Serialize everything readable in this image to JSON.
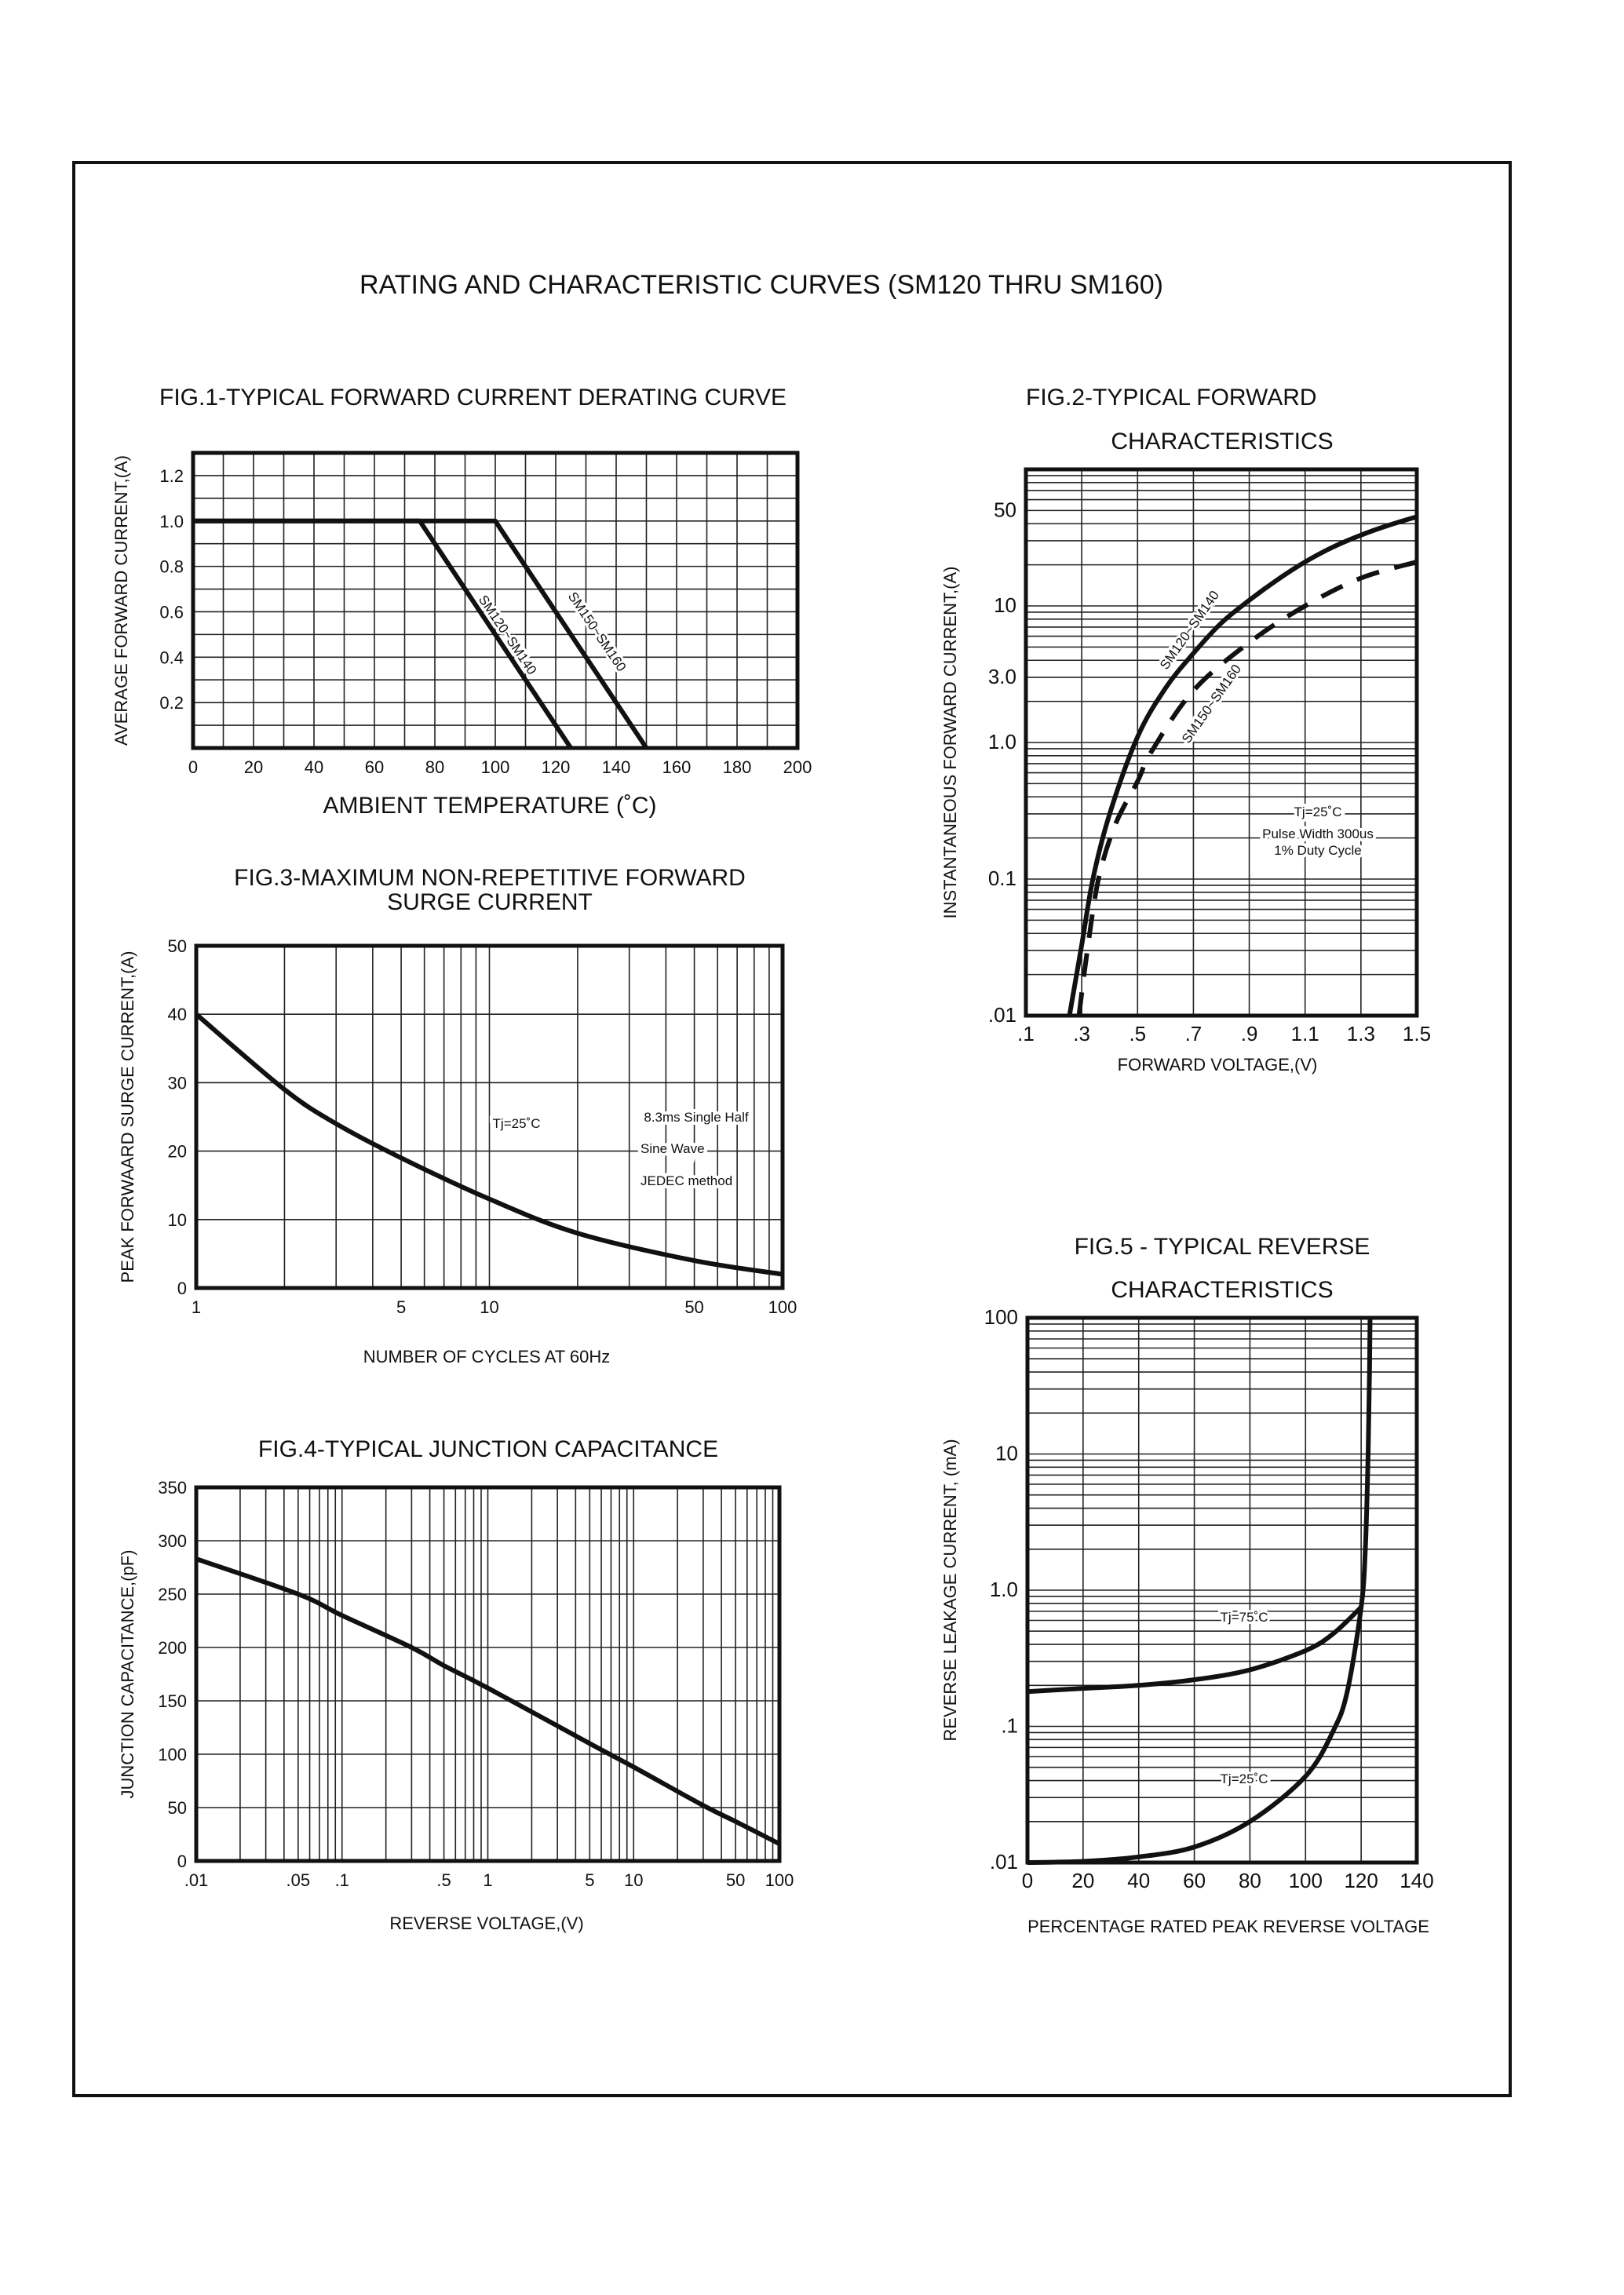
{
  "page_title": "RATING AND CHARACTERISTIC CURVES (SM120 THRU SM160)",
  "chart_data": [
    {
      "type": "line",
      "title_lines": [
        "FIG.1-TYPICAL FORWARD CURRENT DERATING CURVE"
      ],
      "xlabel": "AMBIENT TEMPERATURE (˚C)",
      "ylabel": "AVERAGE FORWARD CURRENT,(A)",
      "x_scale": "linear",
      "y_scale": "linear",
      "xlim": [
        0,
        200
      ],
      "ylim": [
        0,
        1.3
      ],
      "grid": true,
      "x_grid_step": 10,
      "y_grid_step": 0.1,
      "xticks": {
        "values": [
          0,
          20,
          40,
          60,
          80,
          100,
          120,
          140,
          160,
          180,
          200
        ],
        "labels": [
          "0",
          "20",
          "40",
          "60",
          "80",
          "100",
          "120",
          "140",
          "160",
          "180",
          "200"
        ]
      },
      "yticks": {
        "values": [
          0.2,
          0.4,
          0.6,
          0.8,
          1.0,
          1.2
        ],
        "labels": [
          "0.2",
          "0.4",
          "0.6",
          "0.8",
          "1.0",
          "1.2"
        ]
      },
      "series": [
        {
          "name": "SM120~SM140",
          "style": "solid",
          "x": [
            0,
            75,
            125
          ],
          "y": [
            1.0,
            1.0,
            0
          ]
        },
        {
          "name": "SM150~SM160",
          "style": "solid",
          "x": [
            0,
            100,
            150
          ],
          "y": [
            1.0,
            1.0,
            0
          ]
        }
      ],
      "annotations": []
    },
    {
      "type": "line",
      "title_lines": [
        "FIG.2-TYPICAL FORWARD",
        "CHARACTERISTICS"
      ],
      "xlabel": "FORWARD VOLTAGE,(V)",
      "ylabel": "INSTANTANEOUS FORWARD CURRENT,(A)",
      "x_scale": "linear",
      "y_scale": "log",
      "xlim": [
        0.1,
        1.5
      ],
      "ylim": [
        0.01,
        100
      ],
      "grid": true,
      "x_grid_step": 0.2,
      "xticks": {
        "values": [
          0.1,
          0.3,
          0.5,
          0.7,
          0.9,
          1.1,
          1.3,
          1.5
        ],
        "labels": [
          ".1",
          ".3",
          ".5",
          ".7",
          ".9",
          "1.1",
          "1.3",
          "1.5"
        ]
      },
      "yticks": {
        "values": [
          0.01,
          0.1,
          1,
          3,
          10,
          50
        ],
        "labels": [
          ".01",
          "0.1",
          "1.0",
          "3.0",
          "10",
          "50"
        ]
      },
      "series": [
        {
          "name": "SM120~SM140",
          "style": "solid",
          "x": [
            0.256,
            0.3,
            0.34,
            0.4,
            0.5,
            0.6,
            0.7,
            0.8,
            0.9,
            1.0,
            1.1,
            1.2,
            1.3,
            1.4,
            1.5
          ],
          "y": [
            0.01,
            0.033,
            0.1,
            0.3,
            1.1,
            2.5,
            4.5,
            7.5,
            11,
            15.5,
            21,
            27,
            33,
            39,
            45
          ]
        },
        {
          "name": "SM150~SM160",
          "style": "dashed",
          "x": [
            0.29,
            0.32,
            0.36,
            0.42,
            0.5,
            0.55,
            0.7,
            0.9,
            1.1,
            1.3,
            1.5
          ],
          "y": [
            0.01,
            0.03,
            0.1,
            0.25,
            0.52,
            0.86,
            2.4,
            5.4,
            10,
            16,
            21
          ]
        }
      ],
      "annotations": [
        "Tj=25˚C",
        "Pulse Width 300us",
        "1% Duty Cycle"
      ]
    },
    {
      "type": "line",
      "title_lines": [
        "FIG.3-MAXIMUM NON-REPETITIVE FORWARD",
        "SURGE CURRENT"
      ],
      "xlabel": "NUMBER OF CYCLES AT 60Hz",
      "ylabel": "PEAK FORWAARD SURGE CURRENT,(A)",
      "x_scale": "log",
      "y_scale": "linear",
      "xlim": [
        1,
        100
      ],
      "ylim": [
        0,
        50
      ],
      "grid": true,
      "y_grid_step": 10,
      "xticks": {
        "values": [
          1,
          5,
          10,
          50,
          100
        ],
        "labels": [
          "1",
          "5",
          "10",
          "50",
          "100"
        ]
      },
      "yticks": {
        "values": [
          0,
          10,
          20,
          30,
          40,
          50
        ],
        "labels": [
          "0",
          "10",
          "20",
          "30",
          "40",
          "50"
        ]
      },
      "series": [
        {
          "style": "solid",
          "x": [
            1,
            2,
            3,
            5,
            10,
            20,
            50,
            100
          ],
          "y": [
            40,
            29,
            24,
            19,
            13,
            8,
            4,
            2
          ]
        }
      ],
      "annotations": [
        "Tj=25˚C",
        "8.3ms Single Half",
        "Sine Wave",
        "JEDEC method"
      ]
    },
    {
      "type": "line",
      "title_lines": [
        "FIG.4-TYPICAL JUNCTION CAPACITANCE"
      ],
      "xlabel": "REVERSE VOLTAGE,(V)",
      "ylabel": "JUNCTION CAPACITANCE,(pF)",
      "x_scale": "log",
      "y_scale": "linear",
      "xlim": [
        0.01,
        100
      ],
      "ylim": [
        0,
        350
      ],
      "grid": true,
      "y_grid_step": 50,
      "xticks": {
        "values": [
          0.01,
          0.05,
          0.1,
          0.5,
          1,
          5,
          10,
          50,
          100
        ],
        "labels": [
          ".01",
          ".05",
          ".1",
          ".5",
          "1",
          "5",
          "10",
          "50",
          "100"
        ]
      },
      "yticks": {
        "values": [
          0,
          50,
          100,
          150,
          200,
          250,
          300,
          350
        ],
        "labels": [
          "0",
          "50",
          "100",
          "150",
          "200",
          "250",
          "300",
          "350"
        ]
      },
      "series": [
        {
          "style": "solid",
          "x": [
            0.01,
            0.05,
            0.1,
            0.3,
            0.5,
            1,
            5,
            10,
            30,
            50,
            100
          ],
          "y": [
            283,
            250,
            230,
            200,
            183,
            162,
            110,
            88,
            52,
            37,
            16
          ]
        }
      ],
      "annotations": []
    },
    {
      "type": "line",
      "title_lines": [
        "FIG.5 - TYPICAL REVERSE",
        "CHARACTERISTICS"
      ],
      "xlabel": "PERCENTAGE RATED PEAK REVERSE VOLTAGE",
      "ylabel": "REVERSE LEAKAGE CURRENT, (mA)",
      "x_scale": "linear",
      "y_scale": "log",
      "xlim": [
        0,
        140
      ],
      "ylim": [
        0.01,
        100
      ],
      "grid": true,
      "x_grid_step": 20,
      "xticks": {
        "values": [
          0,
          20,
          40,
          60,
          80,
          100,
          120,
          140
        ],
        "labels": [
          "0",
          "20",
          "40",
          "60",
          "80",
          "100",
          "120",
          "140"
        ]
      },
      "yticks": {
        "values": [
          0.01,
          0.1,
          1,
          10,
          100
        ],
        "labels": [
          ".01",
          ".1",
          "1.0",
          "10",
          "100"
        ]
      },
      "series": [
        {
          "name": "Tj=75˚C",
          "style": "solid",
          "x": [
            0,
            20,
            40,
            60,
            80,
            100,
            110,
            120
          ],
          "y": [
            0.18,
            0.19,
            0.2,
            0.22,
            0.26,
            0.36,
            0.48,
            0.75
          ]
        },
        {
          "name": "Tj=25˚C",
          "style": "solid",
          "x": [
            0,
            20,
            40,
            60,
            80,
            100,
            110,
            115,
            120,
            121.5,
            122.5,
            123,
            123.2
          ],
          "y": [
            0.01,
            0.0102,
            0.011,
            0.013,
            0.02,
            0.043,
            0.093,
            0.18,
            0.75,
            2,
            10,
            40,
            100
          ]
        }
      ],
      "annotations": []
    }
  ]
}
